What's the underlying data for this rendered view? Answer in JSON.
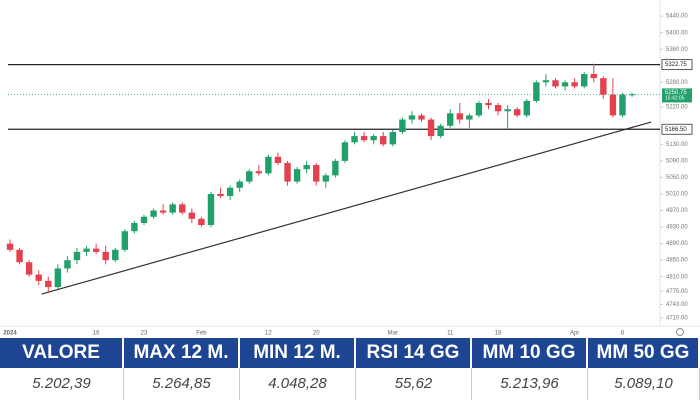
{
  "chart_data": {
    "type": "candlestick",
    "categories": [
      "2024",
      null,
      null,
      null,
      null,
      null,
      null,
      null,
      null,
      "16",
      null,
      null,
      null,
      null,
      "23",
      null,
      null,
      null,
      null,
      null,
      "Feb",
      null,
      null,
      null,
      null,
      null,
      null,
      "12",
      null,
      null,
      null,
      null,
      "20",
      null,
      null,
      null,
      null,
      null,
      null,
      null,
      "Mar",
      null,
      null,
      null,
      null,
      null,
      "11",
      null,
      null,
      null,
      null,
      "18",
      null,
      null,
      null,
      null,
      null,
      null,
      null,
      "Apr",
      null,
      null,
      null,
      null,
      "8",
      null
    ],
    "open": [
      4890,
      4875,
      4845,
      4815,
      4800,
      4785,
      4830,
      4850,
      4870,
      4878,
      4870,
      4850,
      4875,
      4920,
      4940,
      4955,
      4970,
      4965,
      4985,
      4965,
      4950,
      4935,
      5010,
      5005,
      5025,
      5040,
      5065,
      5060,
      5100,
      5085,
      5040,
      5070,
      5080,
      5040,
      5055,
      5090,
      5135,
      5150,
      5140,
      5150,
      5130,
      5160,
      5190,
      5200,
      5190,
      5150,
      5175,
      5205,
      5190,
      5200,
      5230,
      5225,
      5210,
      5215,
      5200,
      5235,
      5280,
      5285,
      5270,
      5280,
      5270,
      5300,
      5290,
      5250,
      5200,
      5250
    ],
    "high": [
      4900,
      4880,
      4850,
      4825,
      4810,
      4840,
      4860,
      4880,
      4885,
      4890,
      4885,
      4880,
      4925,
      4945,
      4960,
      4975,
      4985,
      4990,
      4990,
      4975,
      4955,
      5015,
      5025,
      5030,
      5045,
      5070,
      5080,
      5105,
      5110,
      5090,
      5075,
      5090,
      5085,
      5060,
      5095,
      5140,
      5160,
      5160,
      5155,
      5160,
      5165,
      5195,
      5210,
      5205,
      5195,
      5180,
      5215,
      5230,
      5205,
      5235,
      5240,
      5230,
      5225,
      5220,
      5240,
      5285,
      5300,
      5290,
      5285,
      5290,
      5305,
      5325,
      5295,
      5290,
      5255,
      5255
    ],
    "low": [
      4870,
      4840,
      4810,
      4790,
      4770,
      4780,
      4820,
      4840,
      4860,
      4865,
      4840,
      4845,
      4870,
      4915,
      4935,
      4950,
      4960,
      4960,
      4960,
      4940,
      4930,
      4930,
      5000,
      4995,
      5015,
      5035,
      5055,
      5055,
      5080,
      5030,
      5035,
      5060,
      5030,
      5025,
      5050,
      5085,
      5130,
      5135,
      5130,
      5125,
      5125,
      5155,
      5180,
      5185,
      5140,
      5145,
      5170,
      5180,
      5170,
      5195,
      5215,
      5200,
      5165,
      5195,
      5195,
      5230,
      5270,
      5265,
      5260,
      5265,
      5265,
      5280,
      5240,
      5195,
      5195,
      5245
    ],
    "close": [
      4875,
      4845,
      4815,
      4800,
      4785,
      4830,
      4850,
      4870,
      4878,
      4870,
      4850,
      4875,
      4920,
      4940,
      4955,
      4970,
      4965,
      4985,
      4965,
      4950,
      4935,
      5010,
      5005,
      5025,
      5040,
      5065,
      5060,
      5100,
      5085,
      5040,
      5070,
      5080,
      5040,
      5055,
      5090,
      5135,
      5150,
      5140,
      5150,
      5130,
      5160,
      5190,
      5200,
      5190,
      5150,
      5175,
      5205,
      5190,
      5200,
      5230,
      5225,
      5210,
      5215,
      5200,
      5235,
      5280,
      5285,
      5270,
      5280,
      5270,
      5300,
      5290,
      5250,
      5200,
      5250,
      5251
    ],
    "up_color": "#22a06b",
    "down_color": "#e3414f",
    "ylim": [
      4686,
      5479
    ],
    "yticks": [
      {
        "value": 5440,
        "label": "5440.00"
      },
      {
        "value": 5400,
        "label": "5400.00"
      },
      {
        "value": 5360,
        "label": "5360.00"
      },
      {
        "value": 5280,
        "label": "5280.00"
      },
      {
        "value": 5220,
        "label": "5220.00"
      },
      {
        "value": 5130,
        "label": "5130.00"
      },
      {
        "value": 5090,
        "label": "5090.00"
      },
      {
        "value": 5050,
        "label": "5050.00"
      },
      {
        "value": 5010,
        "label": "5010.00"
      },
      {
        "value": 4970,
        "label": "4970.00"
      },
      {
        "value": 4930,
        "label": "4930.00"
      },
      {
        "value": 4890,
        "label": "4890.00"
      },
      {
        "value": 4850,
        "label": "4850.00"
      },
      {
        "value": 4810,
        "label": "4810.00"
      },
      {
        "value": 4775,
        "label": "4775.00"
      },
      {
        "value": 4743,
        "label": "4743.00"
      },
      {
        "value": 4710,
        "label": "4710.00"
      }
    ],
    "levels": [
      {
        "value": 5322.75,
        "label": "5322.75"
      },
      {
        "value": 5166.5,
        "label": "5166.50"
      }
    ],
    "current": {
      "value": 5250.75,
      "label": "5250.75",
      "countdown": "15:42:05"
    },
    "trendline": {
      "x": [
        3.3,
        67
      ],
      "values": [
        4768,
        5184
      ]
    }
  },
  "table": {
    "headers": [
      "VALORE",
      "MAX 12 M.",
      "MIN 12 M.",
      "RSI 14 GG",
      "MM 10 GG",
      "MM 50 GG"
    ],
    "rows": [
      [
        "5.202,39",
        "5.264,85",
        "4.048,28",
        "55,62",
        "5.213,96",
        "5.089,10"
      ]
    ]
  }
}
